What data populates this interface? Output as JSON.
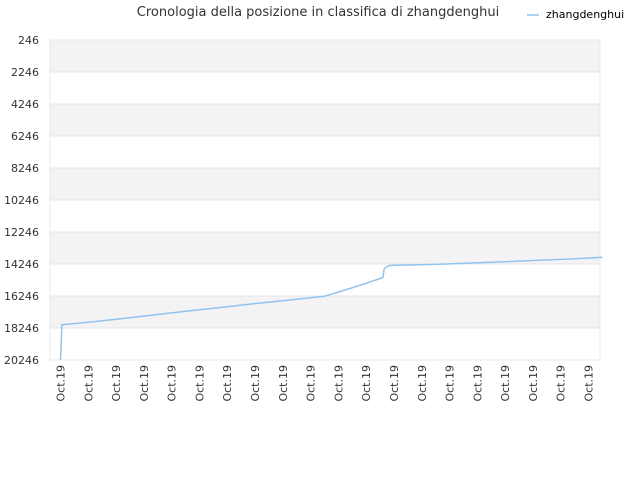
{
  "chart_data": {
    "type": "line",
    "title": "Cronologia della posizione in classifica di zhangdenghui",
    "y_inverted": true,
    "ylim": [
      246,
      20246
    ],
    "y_ticks": [
      246,
      2246,
      4246,
      6246,
      8246,
      10246,
      12246,
      14246,
      16246,
      18246,
      20246
    ],
    "x_tick_labels": [
      "Oct.19",
      "Oct.19",
      "Oct.19",
      "Oct.19",
      "Oct.19",
      "Oct.19",
      "Oct.19",
      "Oct.19",
      "Oct.19",
      "Oct.19",
      "Oct.19",
      "Oct.19",
      "Oct.19",
      "Oct.19",
      "Oct.19",
      "Oct.19",
      "Oct.19",
      "Oct.19",
      "Oct.19",
      "Oct.19"
    ],
    "grid": true,
    "legend_position": "top-right",
    "series": [
      {
        "name": "zhangdenghui",
        "color": "#90c3ee",
        "x": [
          0,
          0.05,
          1,
          2,
          3,
          4,
          5,
          6,
          7,
          8,
          9,
          9.5,
          10,
          11,
          11.6,
          11.65,
          11.8,
          12,
          13,
          14,
          15,
          16,
          17,
          18,
          19,
          19.5
        ],
        "values": [
          20246,
          18040,
          17890,
          17700,
          17500,
          17300,
          17100,
          16920,
          16720,
          16540,
          16360,
          16260,
          16000,
          15450,
          15090,
          14540,
          14350,
          14330,
          14290,
          14240,
          14170,
          14110,
          14030,
          13960,
          13880,
          13820
        ]
      }
    ]
  }
}
